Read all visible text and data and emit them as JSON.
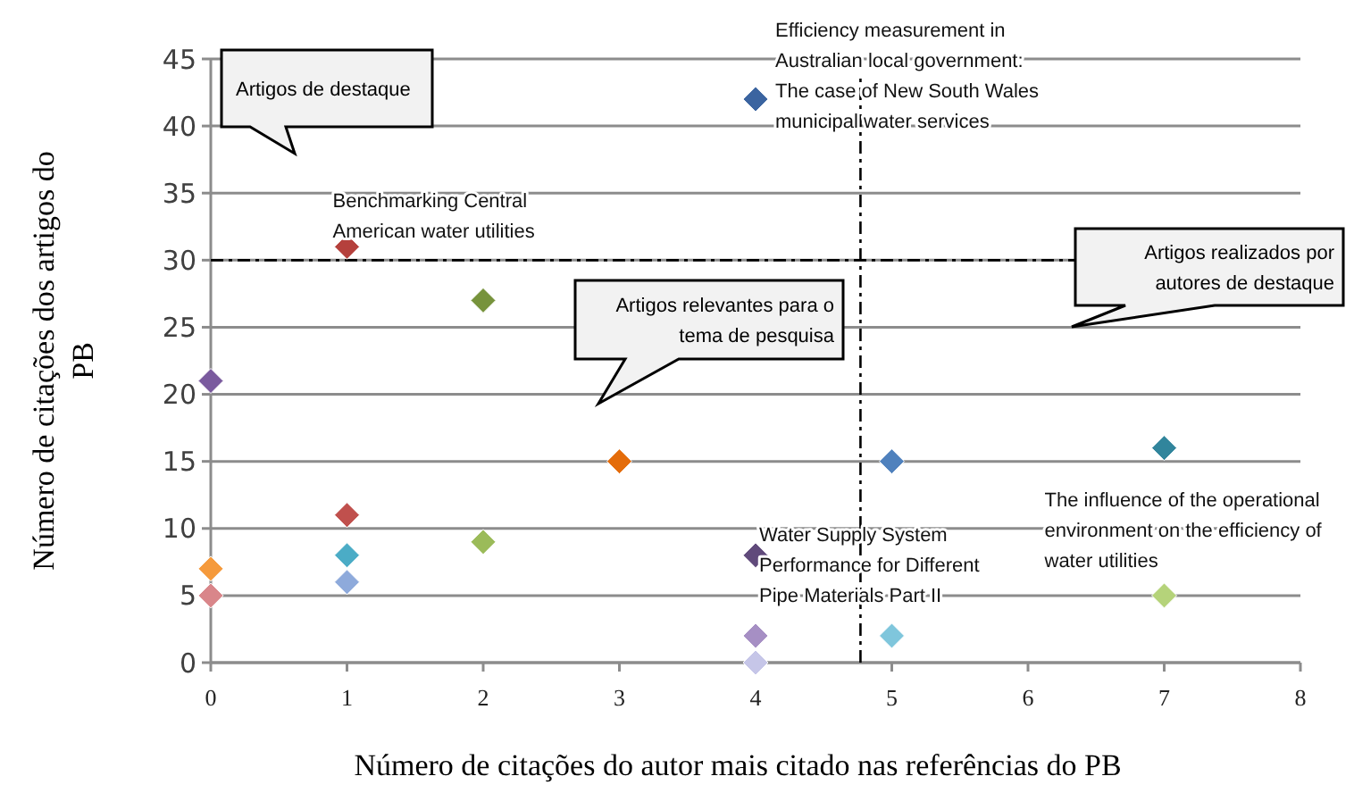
{
  "chart_data": {
    "type": "scatter",
    "xlabel": "Número de citações do autor mais citado nas referências do PB",
    "ylabel": "Número de citações dos artigos do PB",
    "xlim": [
      0,
      8
    ],
    "xticks": [
      0,
      1,
      2,
      3,
      4,
      5,
      6,
      7,
      8
    ],
    "ylim": [
      0,
      45
    ],
    "yticks": [
      0,
      5,
      10,
      15,
      20,
      25,
      30,
      35,
      40,
      45
    ],
    "grid": "y",
    "marker": "diamond",
    "series": [
      {
        "x": [
          0,
          0,
          0,
          1,
          1,
          1,
          1,
          2,
          2,
          3,
          4,
          4,
          4,
          4,
          5,
          5,
          7,
          7
        ],
        "values": [
          21,
          7,
          5,
          31,
          11,
          8,
          6,
          27,
          9,
          15,
          42,
          8,
          2,
          0,
          15,
          2,
          16,
          5
        ],
        "colors": [
          "#7a5a9e",
          "#f59a3c",
          "#d9868a",
          "#b5403c",
          "#c0504d",
          "#4bacc6",
          "#8eaadb",
          "#77933c",
          "#9bbb59",
          "#e46c0a",
          "#3b64a0",
          "#604a7b",
          "#a68fc4",
          "#c6c6e8",
          "#4f81bd",
          "#7fc6dc",
          "#31859c",
          "#b5d37a"
        ]
      }
    ],
    "ref_lines": [
      {
        "axis": "y",
        "value": 30,
        "line_style": "dashdot",
        "color": "#000000"
      },
      {
        "axis": "x",
        "value": 4.77,
        "line_style": "dashdot",
        "color": "#000000"
      }
    ],
    "annotations": [
      {
        "text": "Benchmarking Central American water utilities",
        "x": 1,
        "y": 31
      },
      {
        "text": "Efficiency measurement in Australian local government: The case of New South Wales municipal water services",
        "x": 4,
        "y": 42
      },
      {
        "text": "Water Supply System Performance for Different Pipe Materials Part II",
        "x": 4,
        "y": 8
      },
      {
        "text": "The influence of the operational environment on the efficiency of water utilities",
        "x": 7,
        "y": 5
      },
      "Artigos de destaque",
      "Artigos relevantes para o tema de pesquisa",
      "Artigos realizados por autores de destaque"
    ]
  }
}
